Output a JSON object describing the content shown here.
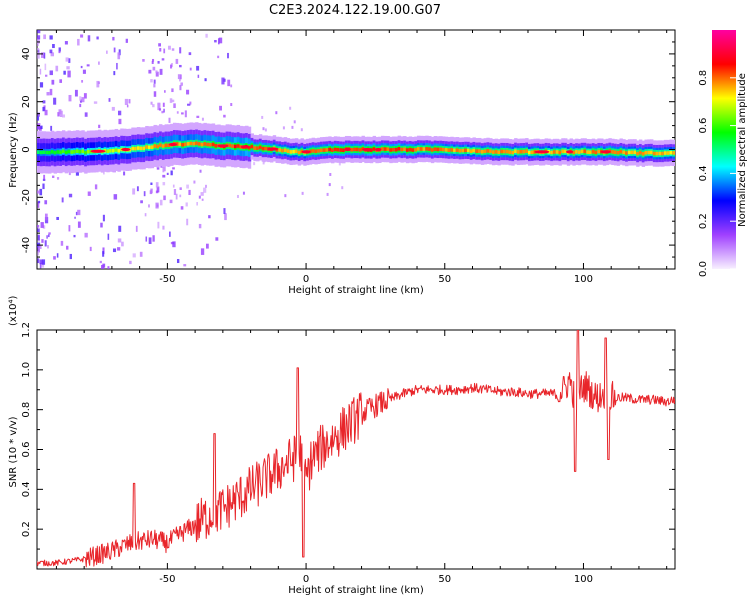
{
  "title": "C2E3.2024.122.19.00.G07",
  "chart_data": [
    {
      "type": "heatmap",
      "xlabel": "Height of straight line (km)",
      "ylabel": "Frequency (Hz)",
      "xlim": [
        -97,
        133
      ],
      "ylim": [
        -50,
        50
      ],
      "xticks": [
        -50,
        0,
        50,
        100
      ],
      "yticks": [
        -40,
        -20,
        0,
        20,
        40
      ],
      "grid": false,
      "colorbar": {
        "label": "Normalized spectral amplitude",
        "range": [
          0,
          1
        ],
        "ticks": [
          "0.0",
          "0.2",
          "0.4",
          "0.6",
          "0.8"
        ],
        "tick_values": [
          0.0,
          0.2,
          0.4,
          0.6,
          0.8
        ],
        "colors": [
          "#f8f0ff",
          "#a040ff",
          "#0000ff",
          "#00ffff",
          "#00ff00",
          "#ffff00",
          "#ff0000",
          "#ff00a0"
        ]
      },
      "ridge": {
        "x": [
          -97,
          -80,
          -70,
          -60,
          -50,
          -40,
          -30,
          -20,
          -10,
          -5,
          0,
          10,
          20,
          30,
          50,
          70,
          90,
          100,
          110,
          120,
          133
        ],
        "center_hz": [
          -1,
          -1,
          -0.5,
          0.5,
          2,
          2.5,
          1.5,
          1,
          0,
          -1,
          -1,
          0,
          0,
          0,
          0,
          -1,
          -1,
          -1,
          -1,
          -1.5,
          -1.5
        ],
        "peak_amplitude": [
          0.55,
          0.65,
          0.7,
          0.75,
          0.8,
          0.82,
          0.85,
          0.85,
          0.8,
          0.75,
          0.8,
          0.85,
          0.88,
          0.85,
          0.8,
          0.78,
          0.78,
          0.8,
          0.8,
          0.78,
          0.75
        ]
      }
    },
    {
      "type": "line",
      "xlabel": "Height of straight line (km)",
      "ylabel": "SNR (10 * v/v)",
      "y_multiplier": "(x10⁴)",
      "xlim": [
        -97,
        133
      ],
      "ylim": [
        0,
        1.2
      ],
      "xticks": [
        -50,
        0,
        50,
        100
      ],
      "yticks": [
        "0.2",
        "0.4",
        "0.6",
        "0.8",
        "1.0",
        "1.2"
      ],
      "ytick_values": [
        0.2,
        0.4,
        0.6,
        0.8,
        1.0,
        1.2
      ],
      "grid": false,
      "color": "#e8252a",
      "series": [
        {
          "x": [
            -97,
            -90,
            -85,
            -80,
            -75,
            -70,
            -65,
            -60,
            -55,
            -50,
            -45,
            -40,
            -35,
            -30,
            -25,
            -20,
            -15,
            -10,
            -5,
            -2,
            0,
            2,
            5,
            10,
            15,
            20,
            25,
            30,
            35,
            40,
            45,
            50,
            55,
            60,
            65,
            70,
            75,
            80,
            85,
            90,
            93,
            95,
            97,
            99,
            101,
            103,
            105,
            107,
            109,
            111,
            115,
            120,
            125,
            130,
            133
          ],
          "values": [
            0.03,
            0.03,
            0.04,
            0.05,
            0.07,
            0.09,
            0.12,
            0.14,
            0.15,
            0.13,
            0.18,
            0.22,
            0.27,
            0.3,
            0.35,
            0.4,
            0.45,
            0.5,
            0.55,
            0.58,
            0.45,
            0.55,
            0.6,
            0.66,
            0.72,
            0.78,
            0.82,
            0.85,
            0.88,
            0.9,
            0.9,
            0.9,
            0.9,
            0.91,
            0.9,
            0.89,
            0.89,
            0.88,
            0.88,
            0.88,
            0.9,
            0.95,
            0.85,
            0.9,
            0.92,
            0.88,
            0.86,
            0.88,
            0.87,
            0.86,
            0.86,
            0.85,
            0.85,
            0.84,
            0.85
          ]
        }
      ],
      "spikes": [
        {
          "x": -62,
          "value": 0.43
        },
        {
          "x": -33,
          "value": 0.68
        },
        {
          "x": -3,
          "value": 1.01
        },
        {
          "x": -1,
          "value": 0.06
        },
        {
          "x": 97,
          "value": 0.49
        },
        {
          "x": 98,
          "value": 1.2
        },
        {
          "x": 108,
          "value": 1.16
        },
        {
          "x": 109,
          "value": 0.55
        }
      ]
    }
  ]
}
